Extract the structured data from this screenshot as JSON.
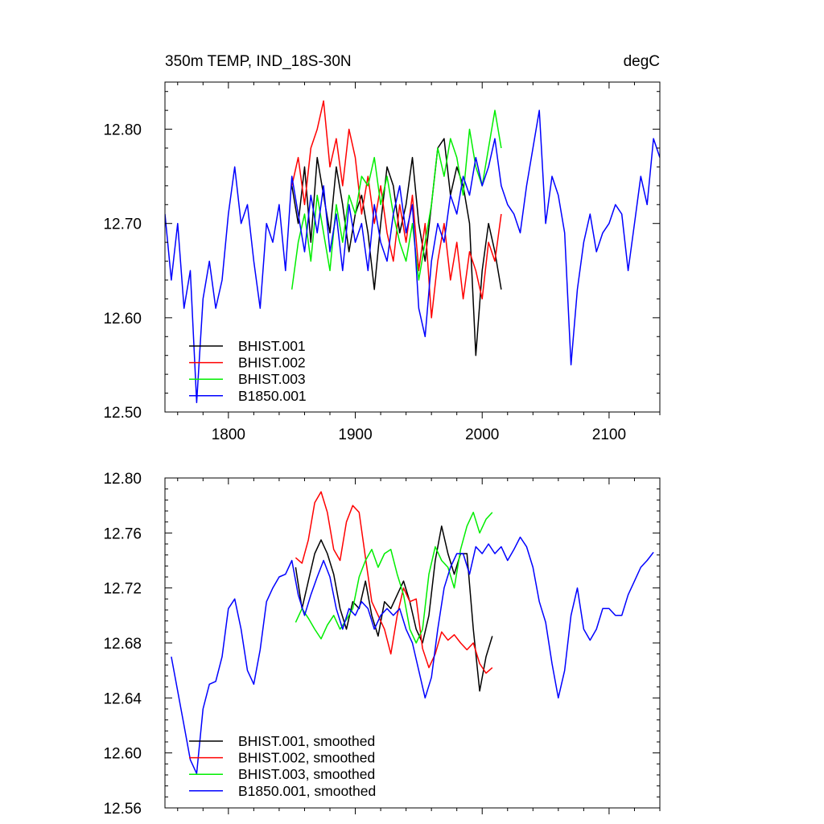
{
  "chart_data": [
    {
      "type": "line",
      "title": "350m TEMP, IND_18S-30N",
      "units": "degC",
      "xlim": [
        1750,
        2140
      ],
      "ylim": [
        12.5,
        12.85
      ],
      "xticks": [
        1800,
        1900,
        2000,
        2100
      ],
      "xtick_labels": [
        "1800",
        "1900",
        "2000",
        "2100"
      ],
      "yticks": [
        12.5,
        12.6,
        12.7,
        12.8
      ],
      "ytick_labels": [
        "12.50",
        "12.60",
        "12.70",
        "12.80"
      ],
      "legend_position": "bottom-left",
      "series": [
        {
          "name": "BHIST.001",
          "color": "#000000",
          "x": [
            1850,
            1855,
            1860,
            1865,
            1870,
            1875,
            1880,
            1885,
            1890,
            1895,
            1900,
            1905,
            1910,
            1915,
            1920,
            1925,
            1930,
            1935,
            1940,
            1945,
            1950,
            1955,
            1960,
            1965,
            1970,
            1975,
            1980,
            1985,
            1990,
            1995,
            2000,
            2005,
            2010,
            2015
          ],
          "y": [
            12.74,
            12.7,
            12.76,
            12.68,
            12.77,
            12.73,
            12.69,
            12.76,
            12.72,
            12.67,
            12.71,
            12.73,
            12.69,
            12.63,
            12.7,
            12.76,
            12.74,
            12.69,
            12.72,
            12.77,
            12.7,
            12.66,
            12.72,
            12.78,
            12.79,
            12.73,
            12.76,
            12.74,
            12.7,
            12.56,
            12.65,
            12.7,
            12.67,
            12.63
          ]
        },
        {
          "name": "BHIST.002",
          "color": "#ff0000",
          "x": [
            1850,
            1855,
            1860,
            1865,
            1870,
            1875,
            1880,
            1885,
            1890,
            1895,
            1900,
            1905,
            1910,
            1915,
            1920,
            1925,
            1930,
            1935,
            1940,
            1945,
            1950,
            1955,
            1960,
            1965,
            1970,
            1975,
            1980,
            1985,
            1990,
            1995,
            2000,
            2005,
            2010,
            2015
          ],
          "y": [
            12.74,
            12.77,
            12.72,
            12.78,
            12.8,
            12.83,
            12.76,
            12.79,
            12.74,
            12.8,
            12.77,
            12.71,
            12.75,
            12.7,
            12.74,
            12.69,
            12.66,
            12.72,
            12.68,
            12.73,
            12.65,
            12.7,
            12.6,
            12.66,
            12.7,
            12.64,
            12.68,
            12.62,
            12.67,
            12.65,
            12.62,
            12.68,
            12.66,
            12.71
          ]
        },
        {
          "name": "BHIST.003",
          "color": "#00ee00",
          "x": [
            1850,
            1855,
            1860,
            1865,
            1870,
            1875,
            1880,
            1885,
            1890,
            1895,
            1900,
            1905,
            1910,
            1915,
            1920,
            1925,
            1930,
            1935,
            1940,
            1945,
            1950,
            1955,
            1960,
            1965,
            1970,
            1975,
            1980,
            1985,
            1990,
            1995,
            2000,
            2005,
            2010,
            2015
          ],
          "y": [
            12.63,
            12.68,
            12.71,
            12.66,
            12.73,
            12.69,
            12.65,
            12.72,
            12.68,
            12.73,
            12.71,
            12.75,
            12.74,
            12.77,
            12.72,
            12.75,
            12.71,
            12.68,
            12.66,
            12.7,
            12.64,
            12.68,
            12.72,
            12.78,
            12.75,
            12.79,
            12.77,
            12.73,
            12.8,
            12.76,
            12.74,
            12.78,
            12.82,
            12.78
          ]
        },
        {
          "name": "B1850.001",
          "color": "#0000ff",
          "x": [
            1750,
            1755,
            1760,
            1765,
            1770,
            1775,
            1780,
            1785,
            1790,
            1795,
            1800,
            1805,
            1810,
            1815,
            1820,
            1825,
            1830,
            1835,
            1840,
            1845,
            1850,
            1855,
            1860,
            1865,
            1870,
            1875,
            1880,
            1885,
            1890,
            1895,
            1900,
            1905,
            1910,
            1915,
            1920,
            1925,
            1930,
            1935,
            1940,
            1945,
            1950,
            1955,
            1960,
            1965,
            1970,
            1975,
            1980,
            1985,
            1990,
            1995,
            2000,
            2005,
            2010,
            2015,
            2020,
            2025,
            2030,
            2035,
            2040,
            2045,
            2050,
            2055,
            2060,
            2065,
            2070,
            2075,
            2080,
            2085,
            2090,
            2095,
            2100,
            2105,
            2110,
            2115,
            2120,
            2125,
            2130,
            2135,
            2140
          ],
          "y": [
            12.71,
            12.64,
            12.7,
            12.61,
            12.65,
            12.51,
            12.62,
            12.66,
            12.61,
            12.64,
            12.71,
            12.76,
            12.7,
            12.72,
            12.66,
            12.61,
            12.7,
            12.68,
            12.72,
            12.65,
            12.75,
            12.71,
            12.67,
            12.73,
            12.69,
            12.74,
            12.67,
            12.71,
            12.65,
            12.72,
            12.68,
            12.7,
            12.65,
            12.72,
            12.68,
            12.66,
            12.71,
            12.74,
            12.69,
            12.72,
            12.61,
            12.58,
            12.66,
            12.7,
            12.68,
            12.73,
            12.71,
            12.75,
            12.73,
            12.77,
            12.74,
            12.76,
            12.79,
            12.74,
            12.72,
            12.71,
            12.69,
            12.74,
            12.78,
            12.82,
            12.7,
            12.75,
            12.73,
            12.69,
            12.55,
            12.63,
            12.68,
            12.71,
            12.67,
            12.69,
            12.7,
            12.72,
            12.71,
            12.65,
            12.7,
            12.75,
            12.72,
            12.79,
            12.77
          ]
        }
      ]
    },
    {
      "type": "line",
      "title": "",
      "xlim": [
        1750,
        2140
      ],
      "ylim": [
        12.56,
        12.8
      ],
      "xticks": [
        1800,
        1900,
        2000,
        2100
      ],
      "yticks": [
        12.56,
        12.6,
        12.64,
        12.68,
        12.72,
        12.76,
        12.8
      ],
      "ytick_labels": [
        "12.56",
        "12.60",
        "12.64",
        "12.68",
        "12.72",
        "12.76",
        "12.80"
      ],
      "legend_position": "bottom-left",
      "series": [
        {
          "name": "BHIST.001, smoothed",
          "color": "#000000",
          "x": [
            1853,
            1858,
            1863,
            1868,
            1873,
            1878,
            1883,
            1888,
            1893,
            1898,
            1903,
            1908,
            1913,
            1918,
            1923,
            1928,
            1933,
            1938,
            1943,
            1948,
            1953,
            1958,
            1963,
            1968,
            1973,
            1978,
            1983,
            1988,
            1993,
            1998,
            2003,
            2008
          ],
          "y": [
            12.735,
            12.705,
            12.725,
            12.745,
            12.755,
            12.745,
            12.73,
            12.705,
            12.69,
            12.71,
            12.705,
            12.725,
            12.7,
            12.685,
            12.71,
            12.705,
            12.715,
            12.725,
            12.71,
            12.69,
            12.68,
            12.7,
            12.74,
            12.765,
            12.745,
            12.73,
            12.745,
            12.745,
            12.69,
            12.645,
            12.67,
            12.685
          ]
        },
        {
          "name": "BHIST.002, smoothed",
          "color": "#ff0000",
          "x": [
            1853,
            1858,
            1863,
            1868,
            1873,
            1878,
            1883,
            1888,
            1893,
            1898,
            1903,
            1908,
            1913,
            1918,
            1923,
            1928,
            1933,
            1938,
            1943,
            1948,
            1953,
            1958,
            1963,
            1968,
            1973,
            1978,
            1983,
            1988,
            1993,
            1998,
            2003,
            2008
          ],
          "y": [
            12.742,
            12.738,
            12.755,
            12.782,
            12.79,
            12.775,
            12.748,
            12.74,
            12.768,
            12.78,
            12.775,
            12.742,
            12.71,
            12.7,
            12.69,
            12.672,
            12.7,
            12.72,
            12.71,
            12.712,
            12.676,
            12.662,
            12.672,
            12.688,
            12.682,
            12.686,
            12.68,
            12.675,
            12.68,
            12.665,
            12.658,
            12.662
          ]
        },
        {
          "name": "BHIST.003, smoothed",
          "color": "#00ee00",
          "x": [
            1853,
            1858,
            1863,
            1868,
            1873,
            1878,
            1883,
            1888,
            1893,
            1898,
            1903,
            1908,
            1913,
            1918,
            1923,
            1928,
            1933,
            1938,
            1943,
            1948,
            1953,
            1958,
            1963,
            1968,
            1973,
            1978,
            1983,
            1988,
            1993,
            1998,
            2003,
            2008
          ],
          "y": [
            12.695,
            12.705,
            12.698,
            12.69,
            12.683,
            12.693,
            12.7,
            12.69,
            12.697,
            12.705,
            12.728,
            12.74,
            12.748,
            12.735,
            12.745,
            12.748,
            12.73,
            12.715,
            12.69,
            12.68,
            12.69,
            12.73,
            12.75,
            12.74,
            12.735,
            12.72,
            12.748,
            12.765,
            12.775,
            12.76,
            12.77,
            12.775
          ]
        },
        {
          "name": "B1850.001, smoothed",
          "color": "#0000ff",
          "x": [
            1755,
            1760,
            1765,
            1770,
            1775,
            1780,
            1785,
            1790,
            1795,
            1800,
            1805,
            1810,
            1815,
            1820,
            1825,
            1830,
            1835,
            1840,
            1845,
            1850,
            1855,
            1860,
            1865,
            1870,
            1875,
            1880,
            1885,
            1890,
            1895,
            1900,
            1905,
            1910,
            1915,
            1920,
            1925,
            1930,
            1935,
            1940,
            1945,
            1950,
            1955,
            1960,
            1965,
            1970,
            1975,
            1980,
            1985,
            1990,
            1995,
            2000,
            2005,
            2010,
            2015,
            2020,
            2025,
            2030,
            2035,
            2040,
            2045,
            2050,
            2055,
            2060,
            2065,
            2070,
            2075,
            2080,
            2085,
            2090,
            2095,
            2100,
            2105,
            2110,
            2115,
            2120,
            2125,
            2130,
            2135
          ],
          "y": [
            12.67,
            12.645,
            12.62,
            12.595,
            12.585,
            12.632,
            12.65,
            12.652,
            12.67,
            12.705,
            12.712,
            12.69,
            12.66,
            12.65,
            12.675,
            12.71,
            12.72,
            12.728,
            12.73,
            12.74,
            12.715,
            12.7,
            12.715,
            12.728,
            12.74,
            12.728,
            12.705,
            12.69,
            12.705,
            12.7,
            12.71,
            12.705,
            12.69,
            12.7,
            12.705,
            12.7,
            12.705,
            12.69,
            12.68,
            12.66,
            12.64,
            12.655,
            12.69,
            12.72,
            12.735,
            12.745,
            12.745,
            12.73,
            12.75,
            12.745,
            12.752,
            12.745,
            12.75,
            12.74,
            12.748,
            12.757,
            12.75,
            12.735,
            12.71,
            12.695,
            12.665,
            12.64,
            12.66,
            12.7,
            12.72,
            12.69,
            12.682,
            12.69,
            12.705,
            12.705,
            12.7,
            12.7,
            12.715,
            12.725,
            12.735,
            12.74,
            12.746
          ]
        }
      ]
    }
  ]
}
